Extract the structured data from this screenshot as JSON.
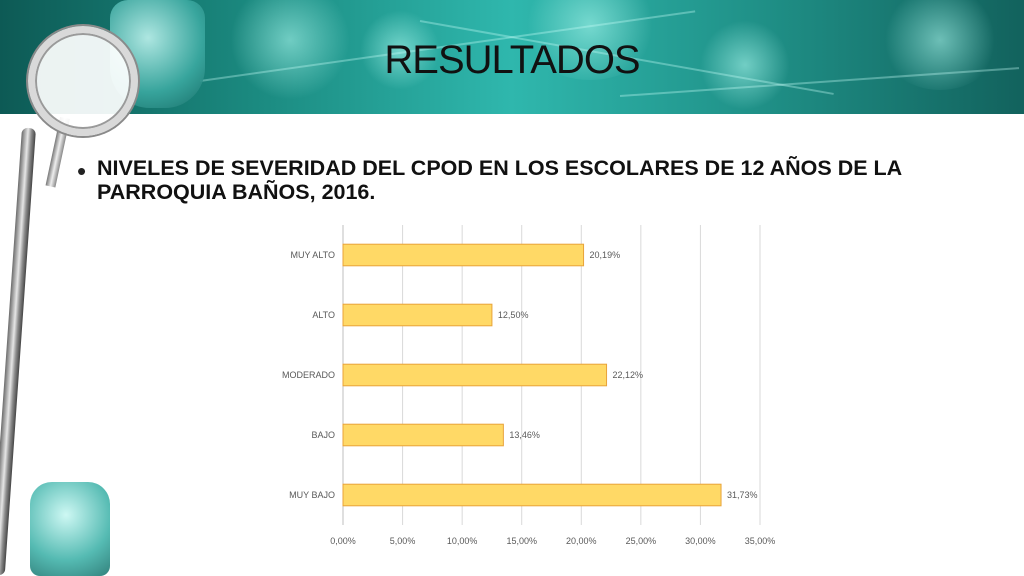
{
  "slide": {
    "title": "RESULTADOS",
    "bullet": "•",
    "subtitle": "NIVELES DE SEVERIDAD DEL CPOD EN LOS ESCOLARES DE 12 AÑOS DE LA PARROQUIA BAÑOS, 2016."
  },
  "chart_data": {
    "type": "bar",
    "orientation": "horizontal",
    "categories": [
      "MUY ALTO",
      "ALTO",
      "MODERADO",
      "BAJO",
      "MUY BAJO"
    ],
    "values": [
      20.19,
      12.5,
      22.12,
      13.46,
      31.73
    ],
    "data_labels": [
      "20,19%",
      "12,50%",
      "22,12%",
      "13,46%",
      "31,73%"
    ],
    "xlim": [
      0,
      35
    ],
    "x_ticks": [
      0,
      5,
      10,
      15,
      20,
      25,
      30,
      35
    ],
    "x_tick_labels": [
      "0,00%",
      "5,00%",
      "10,00%",
      "15,00%",
      "20,00%",
      "25,00%",
      "30,00%",
      "35,00%"
    ],
    "grid": true,
    "bar_color": "#ffd966",
    "bar_border_color": "#e8a33a"
  }
}
